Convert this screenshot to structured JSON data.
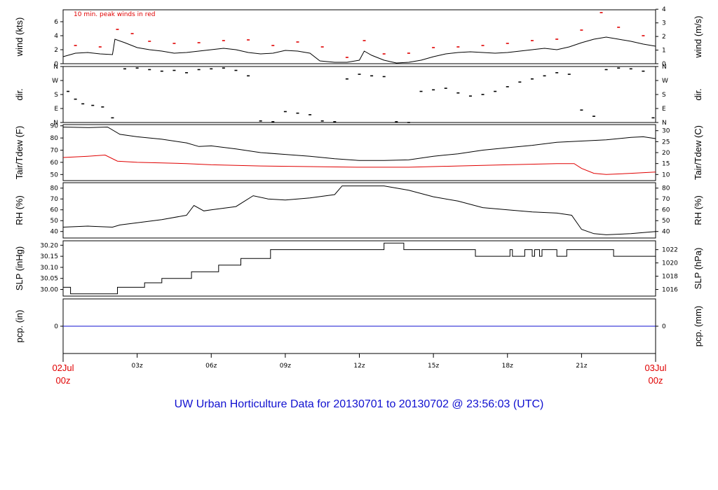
{
  "title": "UW Urban Horticulture Data for 20130701  to  20130702 @ 23:56:03  (UTC)",
  "colors": {
    "black": "#000000",
    "red": "#e00000",
    "blue": "#1010d0"
  },
  "x_axis": {
    "start_date": "02Jul",
    "start_time": "00z",
    "end_date": "03Jul",
    "end_time": "00z",
    "ticks": [
      {
        "label": "03z",
        "hour": 3
      },
      {
        "label": "06z",
        "hour": 6
      },
      {
        "label": "09z",
        "hour": 9
      },
      {
        "label": "12z",
        "hour": 12
      },
      {
        "label": "15z",
        "hour": 15
      },
      {
        "label": "18z",
        "hour": 18
      },
      {
        "label": "21z",
        "hour": 21
      }
    ]
  },
  "chart_data": [
    {
      "type": "line",
      "panel": "wind",
      "ylabel": "wind (kts)",
      "ylabel_right": "wind (m/s)",
      "ylim": [
        0,
        7.7
      ],
      "yticks": [
        0,
        2,
        4,
        6
      ],
      "yticks_right": [
        {
          "label": "0",
          "value": 0
        },
        {
          "label": "1",
          "value": 1.94
        },
        {
          "label": "2",
          "value": 3.89
        },
        {
          "label": "3",
          "value": 5.83
        },
        {
          "label": "4",
          "value": 7.78
        }
      ],
      "annotation": "10 min. peak winds in red",
      "series": [
        {
          "color": "#000000",
          "x": [
            0,
            0.5,
            1,
            1.5,
            2,
            2.1,
            2.5,
            3,
            3.5,
            4,
            4.5,
            5,
            5.5,
            6,
            6.5,
            7,
            7.5,
            8,
            8.5,
            9,
            9.5,
            10,
            10.4,
            11,
            11.5,
            12,
            12.2,
            12.5,
            13,
            13.5,
            14,
            14.5,
            15,
            15.5,
            16,
            16.5,
            17,
            17.5,
            18,
            18.5,
            19,
            19.5,
            20,
            20.5,
            21,
            21.5,
            22,
            22.5,
            23,
            23.5,
            24
          ],
          "y": [
            1.0,
            1.5,
            1.6,
            1.4,
            1.3,
            3.5,
            3.0,
            2.3,
            2.0,
            1.8,
            1.5,
            1.6,
            1.8,
            2.0,
            2.2,
            2.0,
            1.6,
            1.4,
            1.5,
            1.9,
            1.8,
            1.5,
            0.4,
            0.2,
            0.2,
            0.5,
            1.8,
            1.2,
            0.5,
            0.1,
            0.2,
            0.5,
            1.0,
            1.4,
            1.6,
            1.7,
            1.6,
            1.5,
            1.6,
            1.8,
            2.0,
            2.2,
            2.0,
            2.4,
            3.0,
            3.5,
            3.8,
            3.5,
            3.2,
            2.8,
            2.5
          ]
        },
        {
          "name": "10 min. peak winds",
          "color": "#e00000",
          "x": [
            0.5,
            1.5,
            2.2,
            2.8,
            3.5,
            4.5,
            5.5,
            6.5,
            7.5,
            8.5,
            9.5,
            10.5,
            11.5,
            12.2,
            13,
            14,
            15,
            16,
            17,
            18,
            19,
            20,
            21,
            21.8,
            22.5,
            23.5
          ],
          "y": [
            2.6,
            2.4,
            4.9,
            4.3,
            3.2,
            2.9,
            3.0,
            3.3,
            3.4,
            2.6,
            3.1,
            2.4,
            0.9,
            3.3,
            1.4,
            1.5,
            2.3,
            2.4,
            2.6,
            2.9,
            3.3,
            3.5,
            4.8,
            7.3,
            5.2,
            4.0
          ]
        }
      ]
    },
    {
      "type": "scatter",
      "panel": "dir",
      "ylabel": "dir.",
      "ylabel_right": "dir.",
      "ylim": [
        0,
        360
      ],
      "yticks": [
        {
          "label": "N",
          "value": 0
        },
        {
          "label": "E",
          "value": 90
        },
        {
          "label": "S",
          "value": 180
        },
        {
          "label": "W",
          "value": 270
        },
        {
          "label": "N",
          "value": 360
        }
      ],
      "series": [
        {
          "color": "#000000",
          "x": [
            0.2,
            0.5,
            0.8,
            1.2,
            1.6,
            2.0,
            2.5,
            3.0,
            3.5,
            4.0,
            4.5,
            5.0,
            5.5,
            6.0,
            6.5,
            7.0,
            7.5,
            8.0,
            8.5,
            9.0,
            9.5,
            10.0,
            10.5,
            11.0,
            11.5,
            12.0,
            12.5,
            13.0,
            13.5,
            14.0,
            14.5,
            15.0,
            15.5,
            16.0,
            16.5,
            17.0,
            17.5,
            18.0,
            18.5,
            19.0,
            19.5,
            20.0,
            20.5,
            21.0,
            21.5,
            22.0,
            22.5,
            23.0,
            23.5,
            23.9
          ],
          "y": [
            200,
            150,
            120,
            110,
            100,
            30,
            345,
            350,
            340,
            330,
            335,
            320,
            340,
            345,
            350,
            335,
            300,
            10,
            5,
            70,
            60,
            50,
            10,
            5,
            280,
            310,
            300,
            295,
            5,
            0,
            200,
            210,
            220,
            190,
            170,
            180,
            200,
            230,
            260,
            280,
            300,
            320,
            310,
            80,
            40,
            340,
            350,
            345,
            330,
            30
          ]
        }
      ]
    },
    {
      "type": "line",
      "panel": "temperature",
      "ylabel": "Tair/Tdew (F)",
      "ylabel_right": "Tair/Tdew (C)",
      "ylim": [
        45,
        91
      ],
      "yticks": [
        50,
        60,
        70,
        80,
        90
      ],
      "yticks_right": [
        {
          "label": "10",
          "value": 50
        },
        {
          "label": "15",
          "value": 59
        },
        {
          "label": "20",
          "value": 68
        },
        {
          "label": "25",
          "value": 77
        },
        {
          "label": "30",
          "value": 86
        }
      ],
      "series": [
        {
          "name": "Tair",
          "color": "#000000",
          "x": [
            0,
            1,
            1.8,
            2.3,
            3,
            4,
            5,
            5.5,
            6,
            7,
            8,
            9,
            10,
            11,
            12,
            13,
            14,
            15,
            16,
            17,
            18,
            19,
            20,
            21,
            22,
            23,
            23.5,
            24
          ],
          "y": [
            89,
            88.5,
            89,
            83,
            81,
            79,
            76,
            73,
            73.5,
            71,
            68,
            66.5,
            65,
            63,
            61.5,
            61.5,
            62,
            65,
            67,
            70,
            72,
            74,
            76.5,
            77.5,
            78.5,
            80.5,
            81,
            79.5
          ]
        },
        {
          "name": "Tdew",
          "color": "#e00000",
          "x": [
            0,
            1,
            1.7,
            2.2,
            3,
            4,
            5,
            6,
            8,
            10,
            12,
            14,
            16,
            18,
            20,
            20.7,
            21,
            21.5,
            22,
            23,
            24
          ],
          "y": [
            64,
            65,
            66,
            61,
            60,
            59.5,
            59,
            58,
            57,
            56.5,
            56,
            56,
            57,
            58,
            59,
            59,
            55,
            51,
            50,
            51,
            52
          ]
        }
      ]
    },
    {
      "type": "line",
      "panel": "rh",
      "ylabel": "RH (%)",
      "ylabel_right": "RH (%)",
      "ylim": [
        34,
        85
      ],
      "yticks": [
        40,
        50,
        60,
        70,
        80
      ],
      "series": [
        {
          "name": "RH",
          "color": "#000000",
          "x": [
            0,
            1,
            2,
            2.3,
            3,
            4,
            5,
            5.3,
            5.7,
            6,
            7,
            7.7,
            8.3,
            9,
            10,
            11,
            11.3,
            12,
            13,
            14,
            15,
            16,
            17,
            18,
            19,
            20,
            20.6,
            21,
            21.5,
            22,
            23,
            24
          ],
          "y": [
            44,
            45,
            44,
            46,
            48,
            51,
            55,
            64,
            59,
            60,
            63,
            73,
            70,
            69,
            71,
            74,
            82,
            82,
            82,
            78,
            72,
            68,
            62,
            60,
            58,
            57,
            55,
            42,
            38,
            37,
            38,
            40
          ]
        }
      ]
    },
    {
      "type": "line",
      "panel": "slp",
      "ylabel": "SLP (inHg)",
      "ylabel_right": "SLP (hPa)",
      "ylim": [
        29.97,
        30.22
      ],
      "yticks": [
        30.0,
        30.05,
        30.1,
        30.15,
        30.2
      ],
      "yticks_right": [
        {
          "label": "1016",
          "value": 30.0
        },
        {
          "label": "1018",
          "value": 30.06
        },
        {
          "label": "1020",
          "value": 30.12
        },
        {
          "label": "1022",
          "value": 30.18
        }
      ],
      "series": [
        {
          "name": "SLP",
          "color": "#000000",
          "x": [
            0,
            0.3,
            0.3,
            2.2,
            2.2,
            3.3,
            3.3,
            4.0,
            4.0,
            5.2,
            5.2,
            6.3,
            6.3,
            7.2,
            7.2,
            8.4,
            8.4,
            13.0,
            13.0,
            13.8,
            13.8,
            16.7,
            16.7,
            18.1,
            18.1,
            18.2,
            18.2,
            18.7,
            18.7,
            19.0,
            19.0,
            19.1,
            19.1,
            19.3,
            19.3,
            19.4,
            19.4,
            20.0,
            20.0,
            20.4,
            20.4,
            22.3,
            22.3,
            24
          ],
          "y": [
            30.01,
            30.01,
            29.98,
            29.98,
            30.01,
            30.01,
            30.03,
            30.03,
            30.05,
            30.05,
            30.08,
            30.08,
            30.11,
            30.11,
            30.14,
            30.14,
            30.18,
            30.18,
            30.21,
            30.21,
            30.18,
            30.18,
            30.15,
            30.15,
            30.18,
            30.18,
            30.15,
            30.15,
            30.18,
            30.18,
            30.15,
            30.15,
            30.18,
            30.18,
            30.15,
            30.15,
            30.18,
            30.18,
            30.15,
            30.15,
            30.18,
            30.18,
            30.15,
            30.15
          ]
        }
      ]
    },
    {
      "type": "line",
      "panel": "precip",
      "ylabel": "pcp. (in)",
      "ylabel_right": "pcp. (mm)",
      "ylim": [
        -1,
        1
      ],
      "yticks": [
        0
      ],
      "yticks_right": [
        {
          "label": "0",
          "value": 0
        }
      ],
      "series": [
        {
          "name": "precip",
          "color": "#1010d0",
          "x": [
            0,
            24
          ],
          "y": [
            0,
            0
          ]
        }
      ]
    }
  ]
}
